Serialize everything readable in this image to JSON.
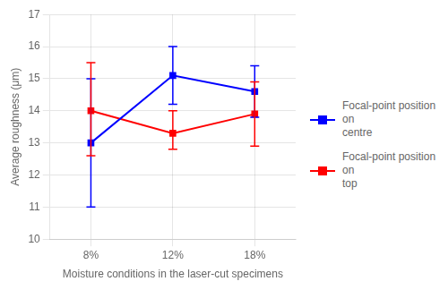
{
  "chart_data": {
    "type": "line",
    "categories": [
      "8%",
      "12%",
      "18%"
    ],
    "xlabel": "Moisture conditions in the laser-cut specimens",
    "ylabel": "Average roughness (μm)",
    "series": [
      {
        "name": "Focal-point position on\ncentre",
        "color": "#0000FF",
        "marker": "square",
        "values": [
          13.0,
          15.1,
          14.6
        ],
        "error_lo": [
          2.0,
          0.9,
          0.8
        ],
        "error_hi": [
          2.0,
          0.9,
          0.8
        ]
      },
      {
        "name": "Focal-point position on\ntop",
        "color": "#FF0000",
        "marker": "square",
        "values": [
          14.0,
          13.3,
          13.9
        ],
        "error_lo": [
          1.4,
          0.5,
          1.0
        ],
        "error_hi": [
          1.5,
          0.7,
          1.0
        ]
      }
    ],
    "ylim": [
      10,
      17
    ],
    "yticks": [
      10,
      11,
      12,
      13,
      14,
      15,
      16,
      17
    ],
    "grid": true,
    "legend": "right"
  }
}
